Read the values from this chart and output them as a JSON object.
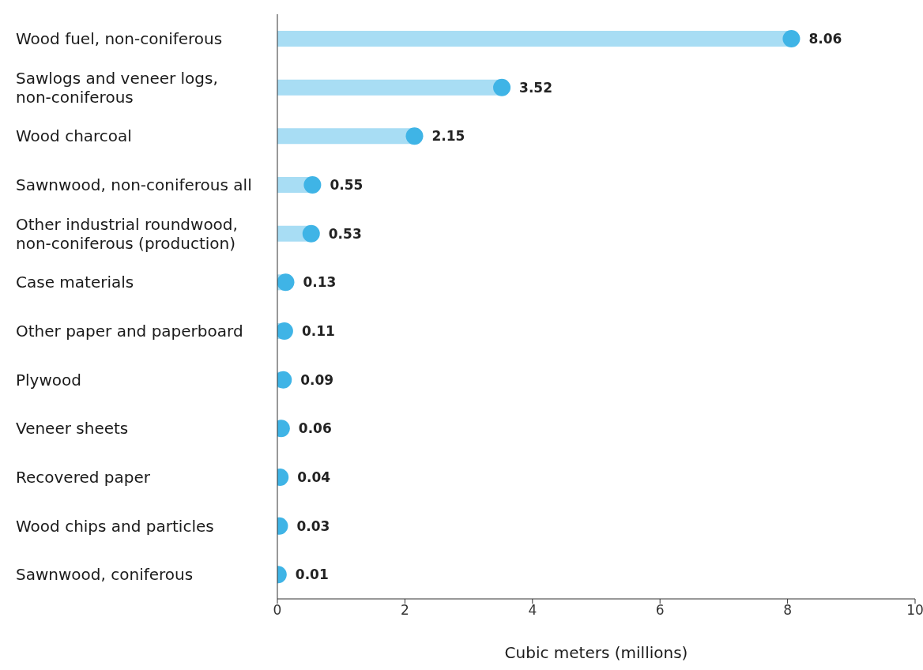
{
  "chart_data": {
    "type": "lollipop",
    "orientation": "horizontal",
    "categories": [
      "Wood fuel, non-coniferous",
      "Sawlogs and veneer logs, non-coniferous",
      "Wood charcoal",
      "Sawnwood, non-coniferous all",
      "Other industrial roundwood, non-coniferous (production)",
      "Case materials",
      "Other paper and paperboard",
      "Plywood",
      "Veneer sheets",
      "Recovered paper",
      "Wood chips and particles",
      "Sawnwood, coniferous"
    ],
    "values": [
      8.06,
      3.52,
      2.15,
      0.55,
      0.53,
      0.13,
      0.11,
      0.09,
      0.06,
      0.04,
      0.03,
      0.01
    ],
    "color": "#3fb4e6",
    "xlabel": "Cubic meters (millions)",
    "xlim": [
      0,
      10
    ],
    "xticks": [
      0,
      2,
      4,
      6,
      8,
      10
    ],
    "data_labels": true
  }
}
